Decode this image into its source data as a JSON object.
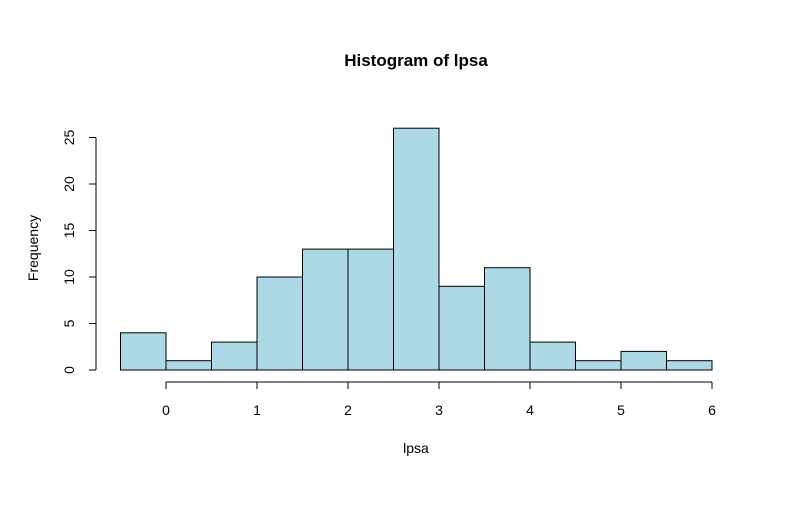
{
  "chart_data": {
    "type": "bar",
    "title": "Histogram of lpsa",
    "xlabel": "lpsa",
    "ylabel": "Frequency",
    "bins": [
      {
        "start": -0.5,
        "end": 0.0,
        "count": 4
      },
      {
        "start": 0.0,
        "end": 0.5,
        "count": 1
      },
      {
        "start": 0.5,
        "end": 1.0,
        "count": 3
      },
      {
        "start": 1.0,
        "end": 1.5,
        "count": 10
      },
      {
        "start": 1.5,
        "end": 2.0,
        "count": 13
      },
      {
        "start": 2.0,
        "end": 2.5,
        "count": 13
      },
      {
        "start": 2.5,
        "end": 3.0,
        "count": 26
      },
      {
        "start": 3.0,
        "end": 3.5,
        "count": 9
      },
      {
        "start": 3.5,
        "end": 4.0,
        "count": 11
      },
      {
        "start": 4.0,
        "end": 4.5,
        "count": 3
      },
      {
        "start": 4.5,
        "end": 5.0,
        "count": 1
      },
      {
        "start": 5.0,
        "end": 5.5,
        "count": 2
      },
      {
        "start": 5.5,
        "end": 6.0,
        "count": 1
      }
    ],
    "xticks": [
      0,
      1,
      2,
      3,
      4,
      5,
      6
    ],
    "yticks": [
      0,
      5,
      10,
      15,
      20,
      25
    ],
    "xlim": [
      -0.5,
      6
    ],
    "ylim": [
      0,
      26
    ],
    "bar_color": "#add8e6",
    "grid": false,
    "legend": "none"
  }
}
